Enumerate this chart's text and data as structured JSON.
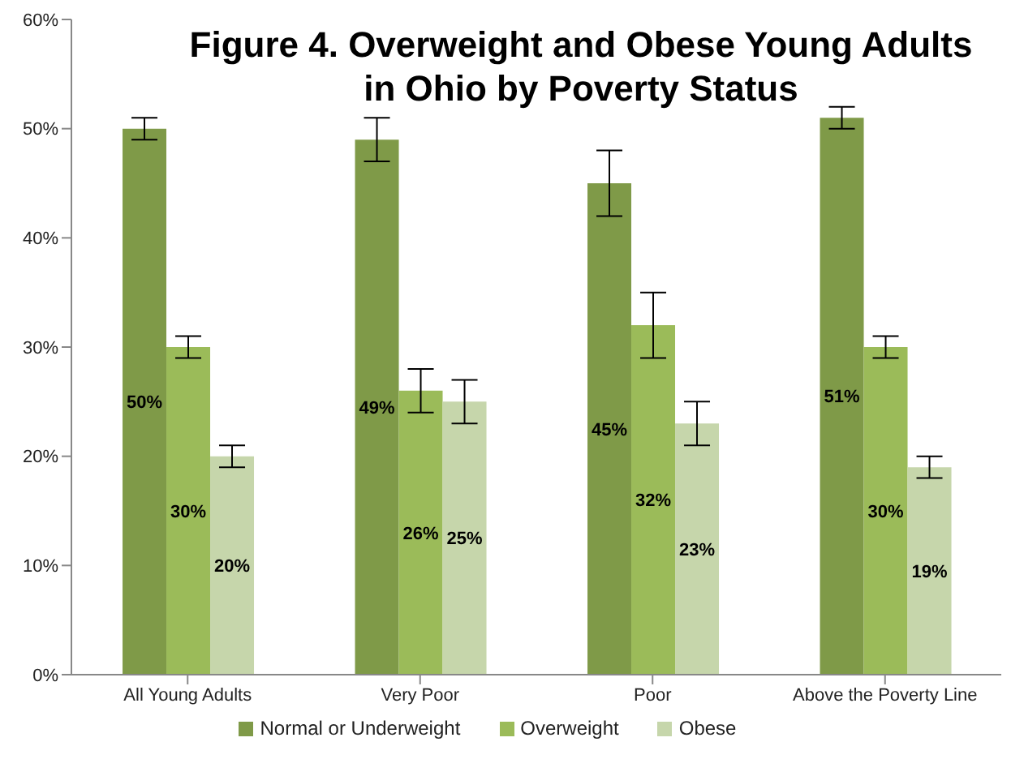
{
  "chart_data": {
    "type": "bar",
    "title": "Figure 4. Overweight and Obese Young Adults in Ohio by Poverty Status",
    "categories": [
      "All Young Adults",
      "Very Poor",
      "Poor",
      "Above the Poverty Line"
    ],
    "series": [
      {
        "name": "Normal or Underweight",
        "color": "#7f9a48",
        "values": [
          50,
          49,
          45,
          51
        ],
        "errors": [
          1,
          2,
          3,
          1
        ],
        "value_labels": [
          "50%",
          "49%",
          "45%",
          "51%"
        ]
      },
      {
        "name": "Overweight",
        "color": "#9bbb59",
        "values": [
          30,
          26,
          32,
          30
        ],
        "errors": [
          1,
          2,
          3,
          1
        ],
        "value_labels": [
          "30%",
          "26%",
          "32%",
          "30%"
        ]
      },
      {
        "name": "Obese",
        "color": "#c6d6ab",
        "values": [
          20,
          25,
          23,
          19
        ],
        "errors": [
          1,
          2,
          2,
          1
        ],
        "value_labels": [
          "20%",
          "25%",
          "23%",
          "19%"
        ]
      }
    ],
    "ylim": [
      0,
      60
    ],
    "yticks": [
      {
        "value": 0,
        "label": "0%"
      },
      {
        "value": 10,
        "label": "10%"
      },
      {
        "value": 20,
        "label": "20%"
      },
      {
        "value": 30,
        "label": "30%"
      },
      {
        "value": 40,
        "label": "40%"
      },
      {
        "value": 50,
        "label": "50%"
      },
      {
        "value": 60,
        "label": "60%"
      }
    ],
    "grid": false,
    "legend": "bottom"
  }
}
